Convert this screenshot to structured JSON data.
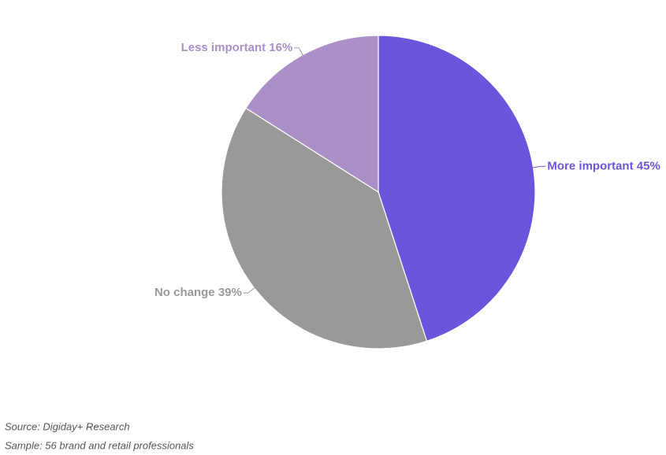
{
  "chart_data": {
    "type": "pie",
    "categories": [
      "More important",
      "No change",
      "Less important"
    ],
    "values": [
      45,
      39,
      16
    ],
    "value_labels": [
      "45%",
      "39%",
      "16%"
    ],
    "colors": [
      "#6c55dc",
      "#999999",
      "#ab90c8"
    ],
    "source": "Source: Digiday+ Research",
    "note": "Sample: 56 brand and retail professionals"
  }
}
